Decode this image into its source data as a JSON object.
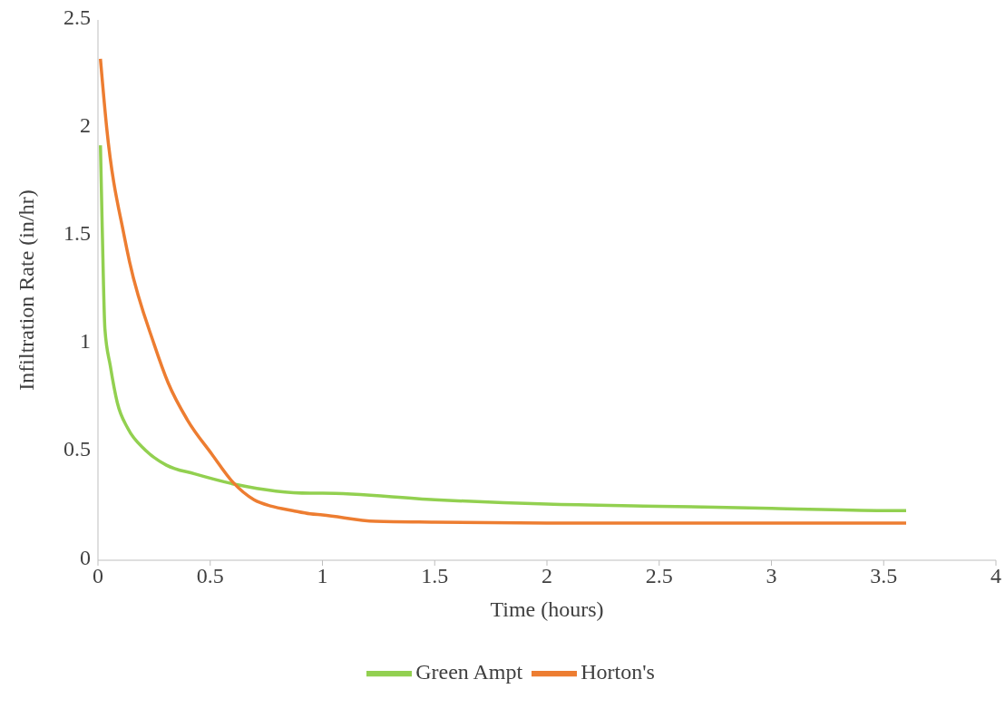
{
  "chart_data": {
    "type": "line",
    "xlabel": "Time (hours)",
    "ylabel": "Infiltration Rate (in/hr)",
    "xlim": [
      0,
      4
    ],
    "xticks": [
      0,
      0.5,
      1,
      1.5,
      2,
      2.5,
      3,
      3.5,
      4
    ],
    "ylim": [
      0,
      2.5
    ],
    "yticks": [
      0,
      0.5,
      1,
      1.5,
      2,
      2.5
    ],
    "grid": false,
    "legend": "bottom",
    "marker": "none",
    "line_style": "solid",
    "series": [
      {
        "name": "Green Ampt",
        "color": "#92d050",
        "x": [
          0.011,
          0.019,
          0.031,
          0.055,
          0.086,
          0.133,
          0.211,
          0.305,
          0.43,
          0.617,
          0.945,
          1,
          1.5,
          2,
          2.5,
          3,
          3.5,
          3.6
        ],
        "values": [
          1.92,
          1.54,
          1.07,
          0.9,
          0.73,
          0.61,
          0.51,
          0.44,
          0.4,
          0.35,
          0.31,
          0.31,
          0.28,
          0.26,
          0.25,
          0.24,
          0.23,
          0.23
        ]
      },
      {
        "name": "Horton's",
        "color": "#ed7d31",
        "x": [
          0.011,
          0.039,
          0.117,
          0.141,
          0.25,
          0.313,
          0.398,
          0.508,
          0.602,
          0.695,
          0.773,
          0.867,
          0.945,
          1,
          1.236,
          1.5,
          2,
          2.5,
          3,
          3.6
        ],
        "values": [
          2.32,
          2,
          1.5,
          1.38,
          1,
          0.82,
          0.65,
          0.49,
          0.36,
          0.28,
          0.25,
          0.23,
          0.215,
          0.21,
          0.18,
          0.176,
          0.172,
          0.172,
          0.172,
          0.172
        ]
      }
    ]
  }
}
